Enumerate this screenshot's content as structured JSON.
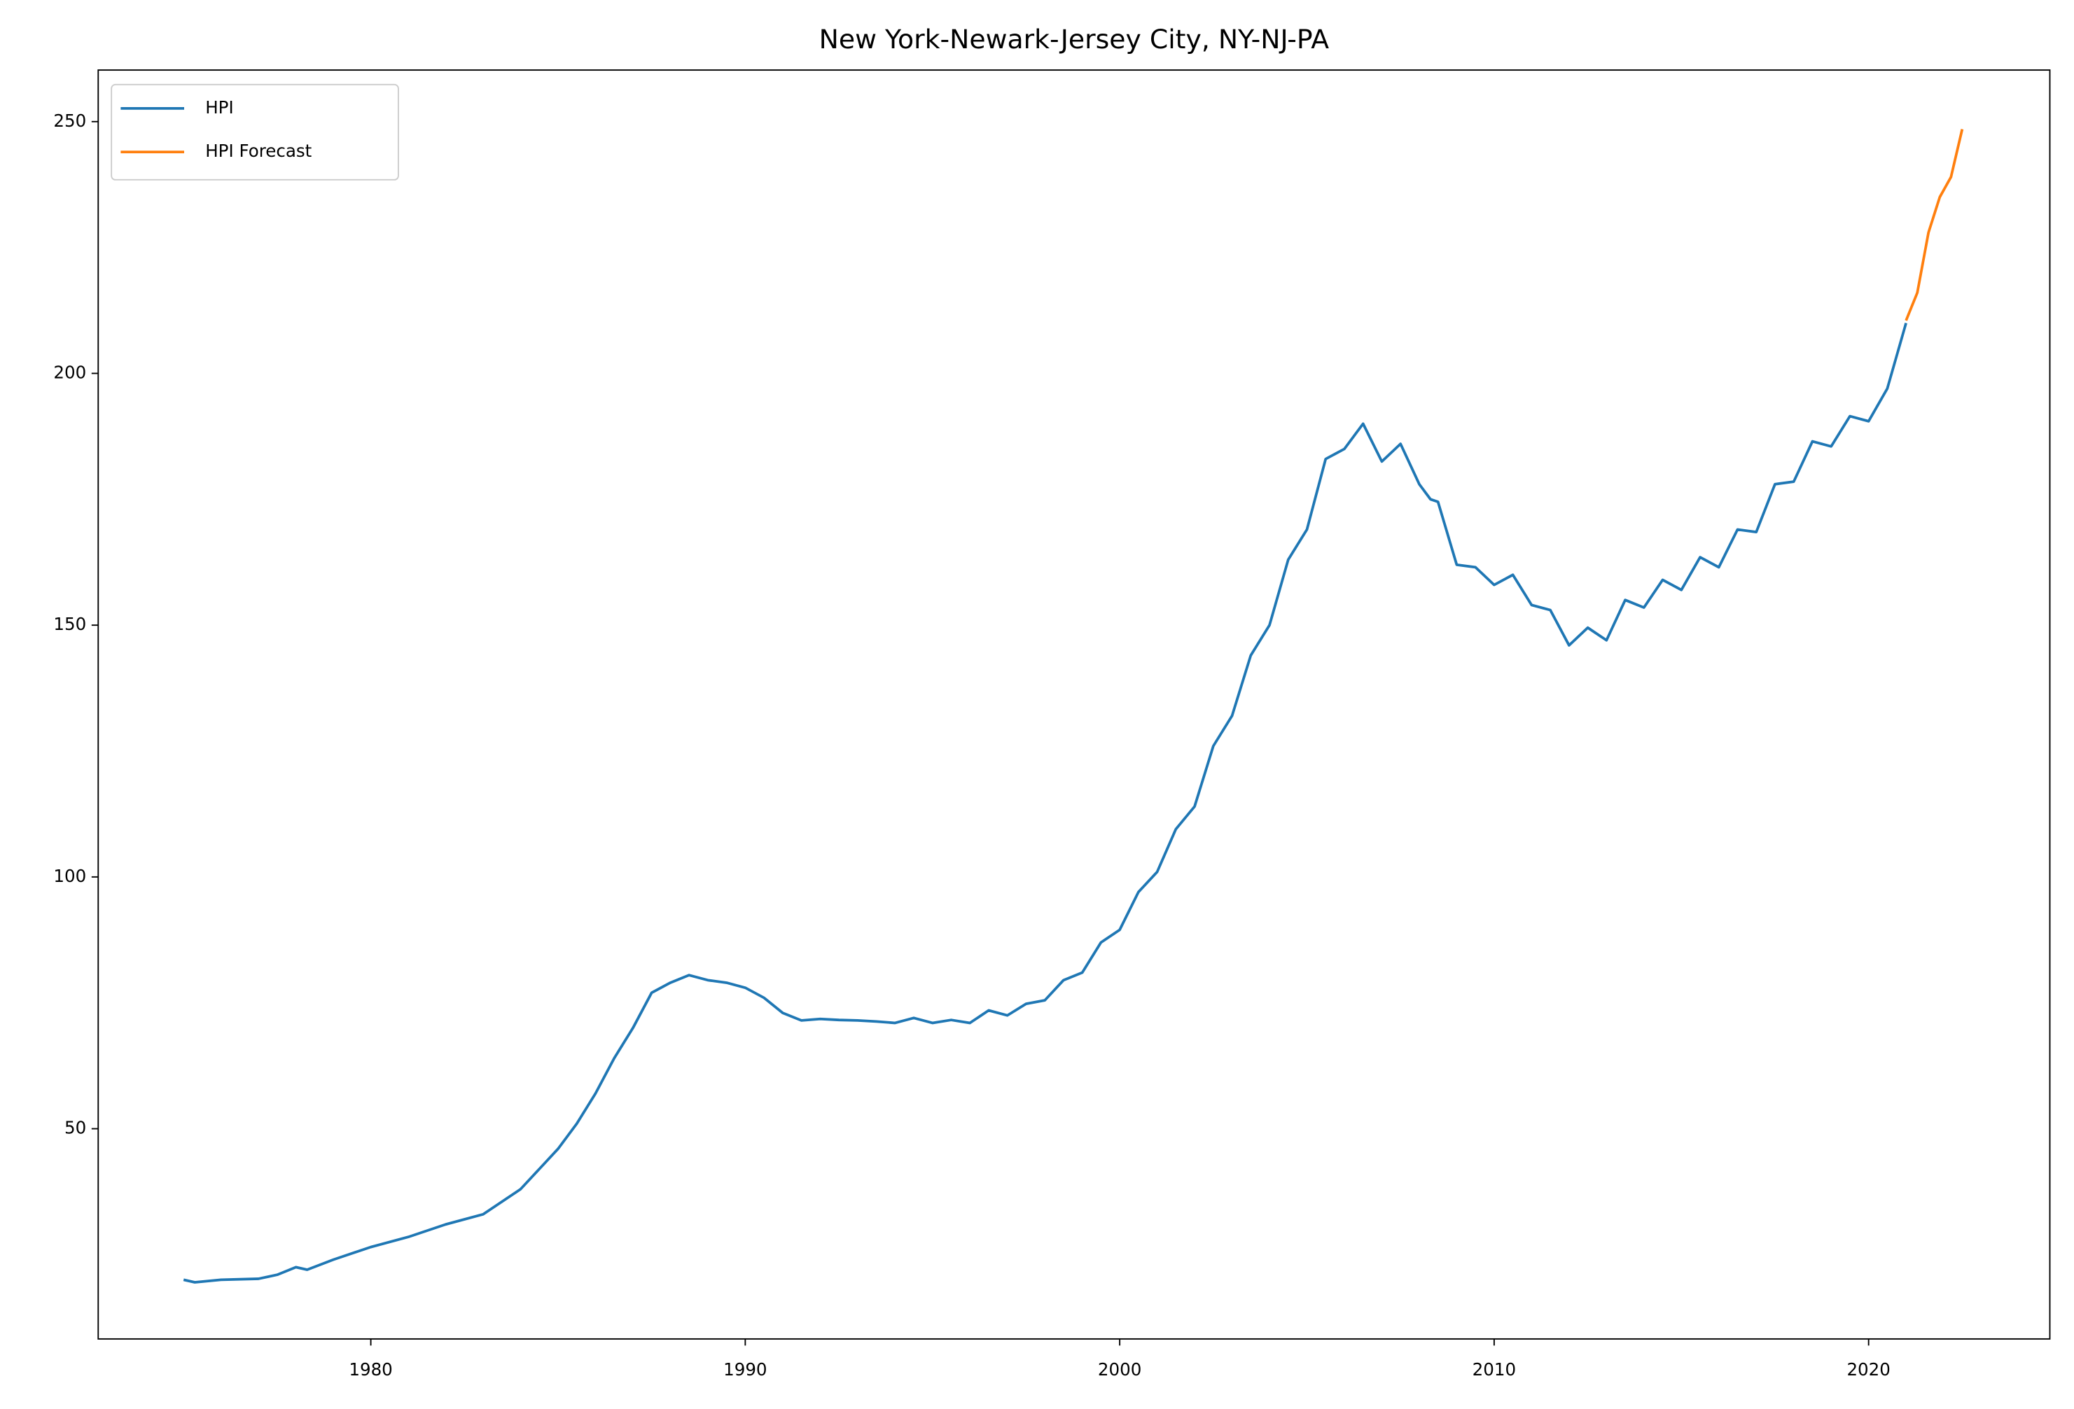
{
  "chart_data": {
    "type": "line",
    "title": "New York-Newark-Jersey City, NY-NJ-PA",
    "series": [
      {
        "name": "HPI",
        "color": "#1f77b4",
        "x": [
          1975.0,
          1975.3,
          1976,
          1977,
          1977.5,
          1978,
          1978.3,
          1979,
          1980,
          1981,
          1982,
          1983,
          1984,
          1984.5,
          1985,
          1985.5,
          1986,
          1986.5,
          1987,
          1987.5,
          1988,
          1988.5,
          1989,
          1989.5,
          1990,
          1990.5,
          1991,
          1991.5,
          1992,
          1992.5,
          1993,
          1993.5,
          1994,
          1994.5,
          1995,
          1995.5,
          1996,
          1996.5,
          1997,
          1997.5,
          1998,
          1998.5,
          1999,
          1999.5,
          2000,
          2000.5,
          2001,
          2001.5,
          2002,
          2002.5,
          2003,
          2003.5,
          2004,
          2004.5,
          2005,
          2005.5,
          2006,
          2006.3,
          2006.5,
          2007,
          2007.5,
          2008,
          2008.3,
          2008.5,
          2009,
          2009.5,
          2010,
          2010.5,
          2011,
          2011.5,
          2012,
          2012.5,
          2013,
          2013.5,
          2014,
          2014.5,
          2015,
          2015.5,
          2016,
          2016.5,
          2017,
          2017.5,
          2018,
          2018.5,
          2019,
          2019.5,
          2020,
          2020.5,
          2021
        ],
        "values": [
          20,
          19.5,
          20,
          20.2,
          21,
          22.5,
          22,
          24,
          26.5,
          28.5,
          31,
          33,
          38,
          42,
          46,
          51,
          57,
          64,
          70,
          77,
          79,
          80.5,
          79.5,
          79,
          78,
          76,
          73,
          71.5,
          71.8,
          71.6,
          71.5,
          71.3,
          71,
          72,
          71,
          71.6,
          71,
          73.5,
          72.5,
          74.8,
          75.5,
          79.5,
          81,
          87,
          89.5,
          97,
          101,
          109.5,
          114,
          126,
          132,
          144,
          150,
          163,
          169,
          183,
          185,
          188,
          190,
          182.5,
          186,
          178,
          175,
          174.5,
          162,
          161.5,
          158,
          160,
          154,
          153,
          146,
          149.5,
          147,
          155,
          153.5,
          159,
          157,
          163.5,
          161.5,
          169,
          168.5,
          178,
          178.5,
          186.5,
          185.5,
          191.5,
          190.5,
          197,
          210
        ]
      },
      {
        "name": "HPI Forecast",
        "color": "#ff7f0e",
        "x": [
          2021.0,
          2021.3,
          2021.6,
          2021.9,
          2022.2,
          2022.5
        ],
        "values": [
          210.5,
          216,
          228,
          235,
          239,
          248.5
        ]
      }
    ],
    "xlim": [
      1972.72,
      2024.84
    ],
    "xticks": [
      1980,
      1990,
      2000,
      2010,
      2020
    ],
    "ylim": [
      8.25,
      260.24
    ],
    "yticks": [
      50,
      100,
      150,
      200,
      250
    ],
    "grid": false,
    "legend": "upper left"
  }
}
